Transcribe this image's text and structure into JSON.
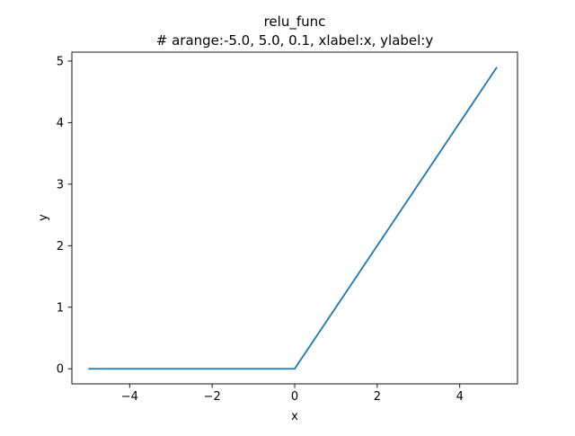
{
  "chart_data": {
    "type": "line",
    "title": "relu_func",
    "subtitle": "# arange:-5.0, 5.0, 0.1, xlabel:x, ylabel:y",
    "xlabel": "x",
    "ylabel": "y",
    "xlim": [
      -5.4,
      5.4
    ],
    "ylim": [
      -0.245,
      5.145
    ],
    "xticks": [
      -4,
      -2,
      0,
      2,
      4
    ],
    "xtick_labels": [
      "−4",
      "−2",
      "0",
      "2",
      "4"
    ],
    "yticks": [
      0,
      1,
      2,
      3,
      4,
      5
    ],
    "ytick_labels": [
      "0",
      "1",
      "2",
      "3",
      "4",
      "5"
    ],
    "grid": false,
    "line_color": "#1f77b4",
    "series": [
      {
        "x": [
          -5.0,
          0.0,
          4.9
        ],
        "y": [
          0.0,
          0.0,
          4.9
        ]
      }
    ]
  }
}
